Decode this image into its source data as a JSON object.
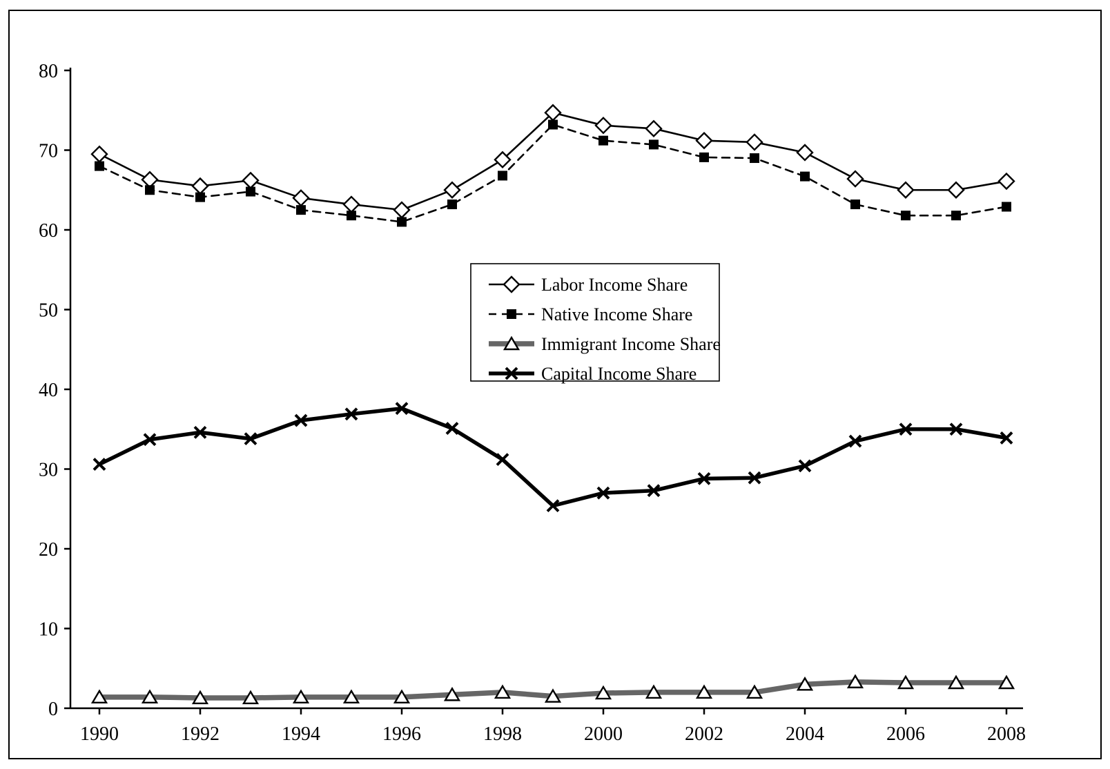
{
  "chart_data": {
    "type": "line",
    "title": "",
    "xlabel": "",
    "ylabel": "",
    "ylim": [
      0,
      80
    ],
    "yticks": [
      0,
      10,
      20,
      30,
      40,
      50,
      60,
      70,
      80
    ],
    "x": [
      1990,
      1991,
      1992,
      1993,
      1994,
      1995,
      1996,
      1997,
      1998,
      1999,
      2000,
      2001,
      2002,
      2003,
      2004,
      2005,
      2006,
      2007,
      2008
    ],
    "xtick_labels": [
      "1990",
      "1992",
      "1994",
      "1996",
      "1998",
      "2000",
      "2002",
      "2004",
      "2006",
      "2008"
    ],
    "grid": false,
    "legend_position": "center",
    "colors": {
      "black": "#000000",
      "gray": "#666666",
      "background": "#ffffff"
    },
    "series": [
      {
        "name": "Labor Income Share",
        "marker": "diamond",
        "line": "solid-thin",
        "values": [
          69.5,
          66.3,
          65.5,
          66.2,
          64.0,
          63.2,
          62.5,
          65.0,
          68.8,
          74.7,
          73.1,
          72.7,
          71.2,
          71.0,
          69.7,
          66.4,
          65.0,
          65.0,
          66.1
        ]
      },
      {
        "name": "Native Income Share",
        "marker": "square",
        "line": "dashed",
        "values": [
          68.0,
          65.0,
          64.1,
          64.8,
          62.5,
          61.8,
          61.0,
          63.2,
          66.8,
          73.2,
          71.2,
          70.7,
          69.1,
          69.0,
          66.7,
          63.2,
          61.8,
          61.8,
          62.9
        ]
      },
      {
        "name": "Immigrant Income Share",
        "marker": "triangle",
        "line": "thick-gray",
        "values": [
          1.4,
          1.4,
          1.3,
          1.3,
          1.4,
          1.4,
          1.4,
          1.7,
          2.0,
          1.5,
          1.9,
          2.0,
          2.0,
          2.0,
          3.0,
          3.3,
          3.2,
          3.2,
          3.2
        ]
      },
      {
        "name": "Capital Income Share",
        "marker": "x",
        "line": "thick-black",
        "values": [
          30.6,
          33.7,
          34.6,
          33.8,
          36.1,
          36.9,
          37.6,
          35.1,
          31.2,
          25.4,
          27.0,
          27.3,
          28.8,
          28.9,
          30.4,
          33.5,
          35.0,
          35.0,
          33.9
        ]
      }
    ]
  }
}
